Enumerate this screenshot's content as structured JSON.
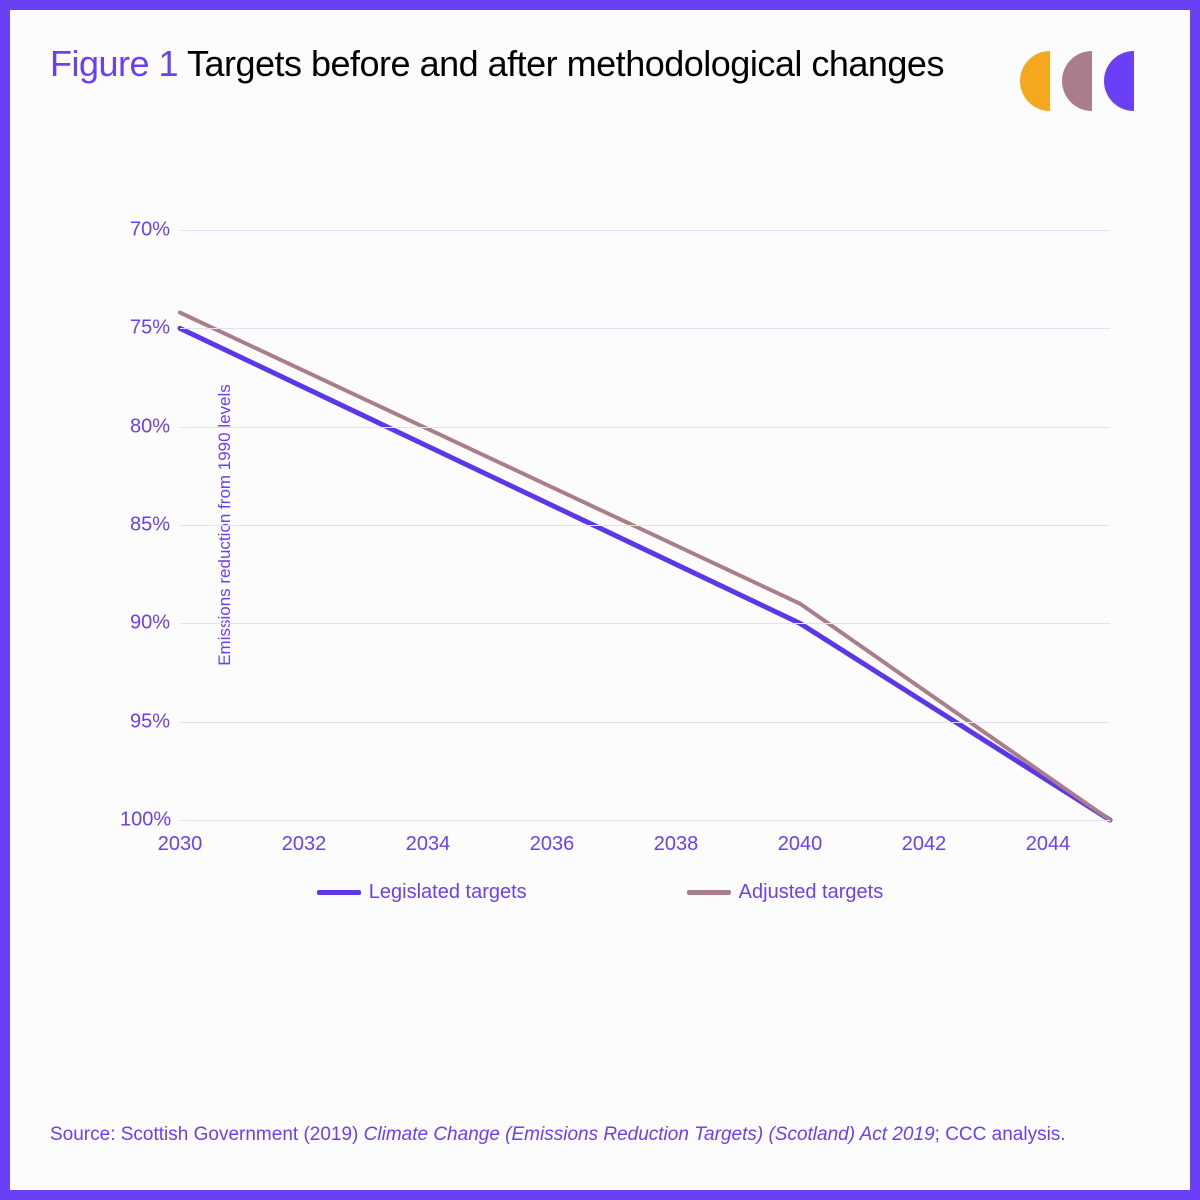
{
  "figure": {
    "label": "Figure 1",
    "title": "Targets before and after methodological changes"
  },
  "logo": {
    "colors": [
      "#f4a81d",
      "#a97e8a",
      "#6b3ff5"
    ]
  },
  "chart": {
    "type": "line",
    "y_axis": {
      "label": "Emissions reduction from 1990 levels",
      "min": 70,
      "max": 100,
      "ticks": [
        70,
        75,
        80,
        85,
        90,
        95,
        100
      ],
      "tick_suffix": "%",
      "inverted": false
    },
    "x_axis": {
      "min": 2030,
      "max": 2045,
      "ticks": [
        2030,
        2032,
        2034,
        2036,
        2038,
        2040,
        2042,
        2044
      ]
    },
    "grid_color": "#e4e0f9",
    "tick_color": "#6b3ff5",
    "tick_fontsize": 20,
    "axis_label_fontsize": 17,
    "background_color": "#fcfcfc",
    "series": [
      {
        "name": "Legislated targets",
        "color": "#5b37e8",
        "width": 5,
        "points": [
          {
            "x": 2030,
            "y": 75.0
          },
          {
            "x": 2040,
            "y": 90.0
          },
          {
            "x": 2045,
            "y": 100.0
          }
        ]
      },
      {
        "name": "Adjusted targets",
        "color": "#a97e8a",
        "width": 4,
        "points": [
          {
            "x": 2030,
            "y": 74.2
          },
          {
            "x": 2040,
            "y": 89.0
          },
          {
            "x": 2045,
            "y": 100.0
          }
        ]
      }
    ],
    "legend": {
      "position": "bottom",
      "items": [
        "Legislated targets",
        "Adjusted targets"
      ]
    }
  },
  "source": {
    "prefix": "Source: Scottish Government (2019) ",
    "italic": "Climate Change (Emissions Reduction Targets) (Scotland) Act 2019",
    "suffix": "; CCC analysis."
  },
  "frame": {
    "border_color": "#6b3ff5",
    "border_width": 10
  }
}
